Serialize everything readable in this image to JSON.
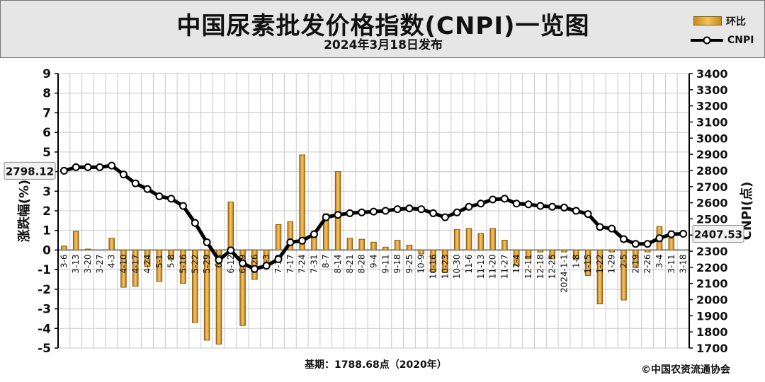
{
  "title": "中国尿素批发价格指数(CNPI)一览图",
  "subtitle": "2024年3月18日发布",
  "legend": {
    "bar": "环比",
    "line": "CNPI"
  },
  "footer": {
    "base": "基期：1788.68点（2020年）",
    "copyright": "©中国农资流通协会"
  },
  "colors": {
    "bar": "#e9a93a",
    "bar_dark": "#8a5a10",
    "line": "#000000",
    "marker": "#ffffff",
    "grid": "#c8c8c8",
    "plot_bg": "#ffffff",
    "band": "#e4e4e4"
  },
  "chart_data": {
    "type": "bar+line",
    "categories": [
      "3-6",
      "3-13",
      "3-20",
      "3-27",
      "4-3",
      "4-10",
      "4-17",
      "4-24",
      "5-1",
      "5-8",
      "5-16",
      "5-22",
      "5-29",
      "6-5",
      "6-12",
      "6-19",
      "6-26",
      "7-3",
      "7-10",
      "7-17",
      "7-24",
      "7-31",
      "8-7",
      "8-14",
      "8-21",
      "8-28",
      "9-4",
      "9-11",
      "9-18",
      "9-25",
      "10-9",
      "10-16",
      "10-23",
      "10-30",
      "11-6",
      "11-13",
      "11-20",
      "11-27",
      "12-4",
      "12-11",
      "12-18",
      "12-25",
      "2024-1-1",
      "1-8",
      "1-15",
      "1-22",
      "1-29",
      "2-5",
      "2-19",
      "2-26",
      "3-4",
      "3-11",
      "3-18"
    ],
    "series": [
      {
        "name": "环比",
        "axis": "left",
        "values": [
          0.2,
          0.95,
          0.05,
          0.0,
          0.6,
          -1.9,
          -1.85,
          -0.85,
          -1.6,
          -0.5,
          -1.7,
          -3.7,
          -4.6,
          -4.8,
          2.45,
          -3.85,
          -1.5,
          -0.9,
          1.3,
          1.45,
          4.85,
          0.9,
          1.85,
          4.0,
          0.6,
          0.55,
          0.4,
          0.15,
          0.5,
          0.25,
          -0.2,
          -1.1,
          -1.15,
          1.05,
          1.1,
          0.85,
          1.1,
          0.5,
          -0.8,
          -0.45,
          -0.1,
          -0.45,
          -0.1,
          -0.5,
          -1.3,
          -2.75,
          -0.1,
          -2.55,
          -0.9,
          -0.1,
          1.2,
          0.6,
          0.0
        ]
      },
      {
        "name": "CNPI",
        "axis": "right",
        "values": [
          2798.12,
          2820,
          2820,
          2820,
          2830,
          2775,
          2720,
          2685,
          2640,
          2625,
          2580,
          2475,
          2355,
          2245,
          2305,
          2225,
          2190,
          2210,
          2250,
          2355,
          2365,
          2405,
          2510,
          2525,
          2535,
          2540,
          2545,
          2550,
          2560,
          2565,
          2560,
          2535,
          2510,
          2540,
          2575,
          2595,
          2620,
          2625,
          2595,
          2590,
          2580,
          2575,
          2570,
          2550,
          2530,
          2450,
          2440,
          2375,
          2345,
          2345,
          2380,
          2405,
          2407.53
        ]
      }
    ],
    "left_axis": {
      "label": "涨跌幅(%)",
      "min": -5,
      "max": 9,
      "ticks": [
        9,
        8,
        7,
        6,
        5,
        4,
        3,
        2,
        1,
        0,
        -1,
        -2,
        -3,
        -4,
        -5
      ]
    },
    "right_axis": {
      "label": "CNPI(点)",
      "min": 1700,
      "max": 3400,
      "ticks": [
        3400,
        3300,
        3200,
        3100,
        3000,
        2900,
        2800,
        2700,
        2600,
        2500,
        2400,
        2300,
        2200,
        2100,
        2000,
        1900,
        1800,
        1700
      ]
    },
    "annotations": {
      "first_value": "2798.12",
      "last_value": "2407.53"
    }
  }
}
